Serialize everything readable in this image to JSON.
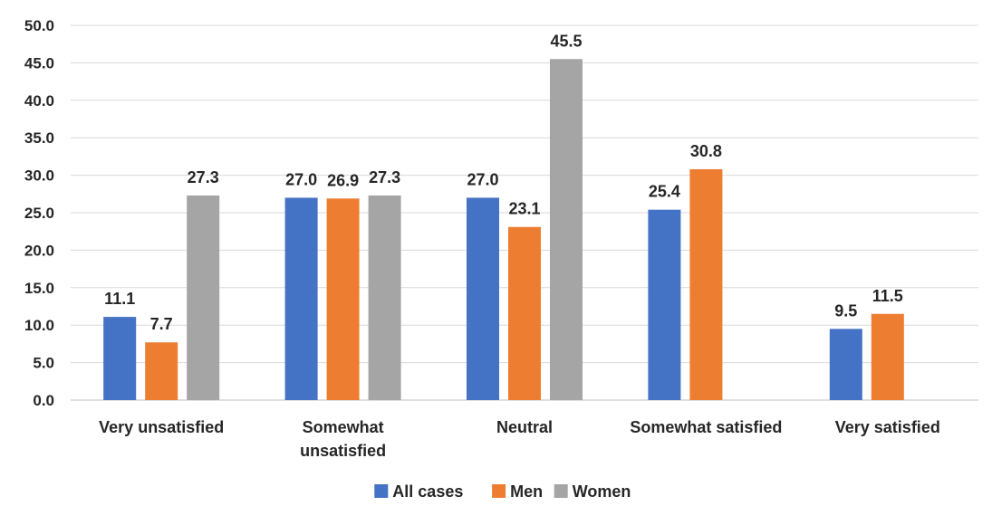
{
  "chart_data": {
    "type": "bar",
    "title": "",
    "xlabel": "",
    "ylabel": "",
    "ylim": [
      0,
      50
    ],
    "yticks": [
      "0.0",
      "5.0",
      "10.0",
      "15.0",
      "20.0",
      "25.0",
      "30.0",
      "35.0",
      "40.0",
      "45.0",
      "50.0"
    ],
    "grid": true,
    "legend_position": "bottom",
    "categories": [
      [
        "Very unsatisfied"
      ],
      [
        "Somewhat",
        "unsatisfied"
      ],
      [
        "Neutral"
      ],
      [
        "Somewhat satisfied"
      ],
      [
        "Very satisfied"
      ]
    ],
    "series": [
      {
        "name": "All cases",
        "color": "#4472C4",
        "values": [
          11.1,
          27.0,
          27.0,
          25.4,
          9.5
        ],
        "labels": [
          "11.1",
          "27.0",
          "27.0",
          "25.4",
          "9.5"
        ]
      },
      {
        "name": "Men",
        "color": "#ED7D31",
        "values": [
          7.7,
          26.9,
          23.1,
          30.8,
          11.5
        ],
        "labels": [
          "7.7",
          "26.9",
          "23.1",
          "30.8",
          "11.5"
        ]
      },
      {
        "name": "Women",
        "color": "#A5A5A5",
        "values": [
          27.3,
          27.3,
          45.5,
          null,
          null
        ],
        "labels": [
          "27.3",
          "27.3",
          "45.5",
          "",
          ""
        ]
      }
    ]
  }
}
